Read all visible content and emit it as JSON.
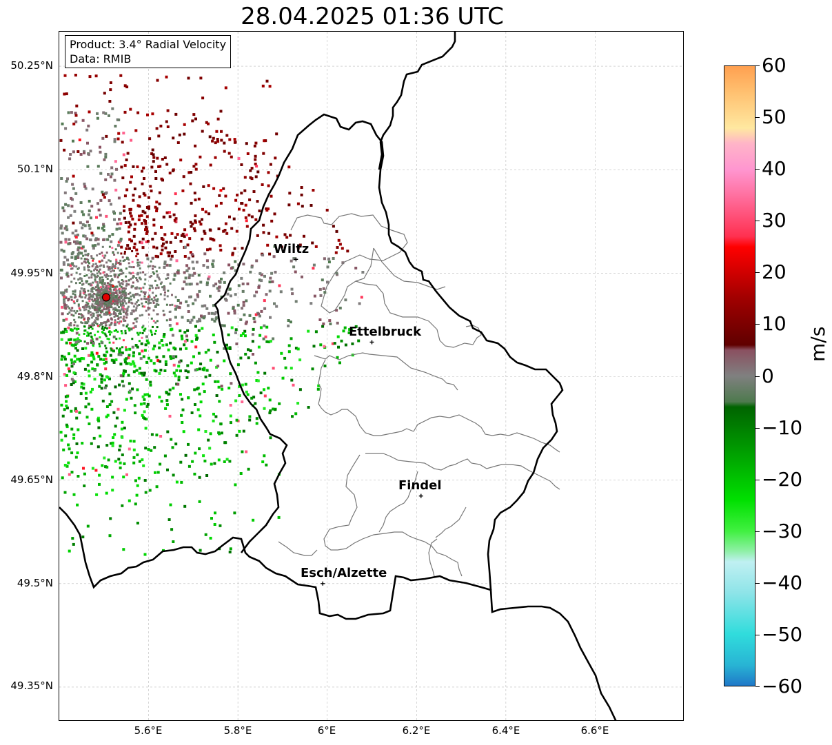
{
  "title": "28.04.2025 01:36 UTC",
  "info": {
    "product": "Product: 3.4° Radial Velocity",
    "data": "Data: RMIB"
  },
  "map": {
    "lon_range": [
      5.4,
      6.8
    ],
    "lat_range": [
      49.3,
      50.3
    ],
    "y_ticks": [
      "50.25°N",
      "50.1°N",
      "49.95°N",
      "49.8°N",
      "49.65°N",
      "49.5°N",
      "49.35°N"
    ],
    "y_tick_values": [
      50.25,
      50.1,
      49.95,
      49.8,
      49.65,
      49.5,
      49.35
    ],
    "x_ticks": [
      "5.6°E",
      "5.8°E",
      "6°E",
      "6.2°E",
      "6.4°E",
      "6.6°E"
    ],
    "x_tick_values": [
      5.6,
      5.8,
      6.0,
      6.2,
      6.4,
      6.6
    ],
    "grid": true,
    "radar": {
      "lon": 5.505,
      "lat": 49.915
    },
    "cities": [
      {
        "name": "Wiltz",
        "lon": 5.93,
        "lat": 49.97
      },
      {
        "name": "Ettelbruck",
        "lon": 6.1,
        "lat": 49.85
      },
      {
        "name": "Findel",
        "lon": 6.21,
        "lat": 49.627
      },
      {
        "name": "Esch/Alzette",
        "lon": 5.99,
        "lat": 49.5
      }
    ]
  },
  "colorbar": {
    "unit": "m/s",
    "min": -60,
    "max": 60,
    "ticks": [
      "60",
      "50",
      "40",
      "30",
      "20",
      "10",
      "0",
      "−10",
      "−20",
      "−30",
      "−40",
      "−50",
      "−60"
    ],
    "tick_values": [
      60,
      50,
      40,
      30,
      20,
      10,
      0,
      -10,
      -20,
      -30,
      -40,
      -50,
      -60
    ],
    "stops": [
      {
        "value": -60,
        "color": "#1f78c8"
      },
      {
        "value": -56,
        "color": "#28b4d4"
      },
      {
        "value": -50,
        "color": "#30dcdc"
      },
      {
        "value": -42,
        "color": "#8ee4e8"
      },
      {
        "value": -36,
        "color": "#c0f0f2"
      },
      {
        "value": -34,
        "color": "#90f0a8"
      },
      {
        "value": -30,
        "color": "#40f040"
      },
      {
        "value": -24,
        "color": "#00e000"
      },
      {
        "value": -15,
        "color": "#00a000"
      },
      {
        "value": -6,
        "color": "#006400"
      },
      {
        "value": -5,
        "color": "#4e7a4e"
      },
      {
        "value": 0,
        "color": "#808080"
      },
      {
        "value": 5,
        "color": "#8a5060"
      },
      {
        "value": 6,
        "color": "#600000"
      },
      {
        "value": 15,
        "color": "#a00000"
      },
      {
        "value": 25,
        "color": "#ff0000"
      },
      {
        "value": 27,
        "color": "#ff3050"
      },
      {
        "value": 35,
        "color": "#ff70a0"
      },
      {
        "value": 40,
        "color": "#ff96d0"
      },
      {
        "value": 45,
        "color": "#ffb4c8"
      },
      {
        "value": 48,
        "color": "#ffe8a0"
      },
      {
        "value": 55,
        "color": "#ffc070"
      },
      {
        "value": 60,
        "color": "#ffa050"
      }
    ]
  }
}
